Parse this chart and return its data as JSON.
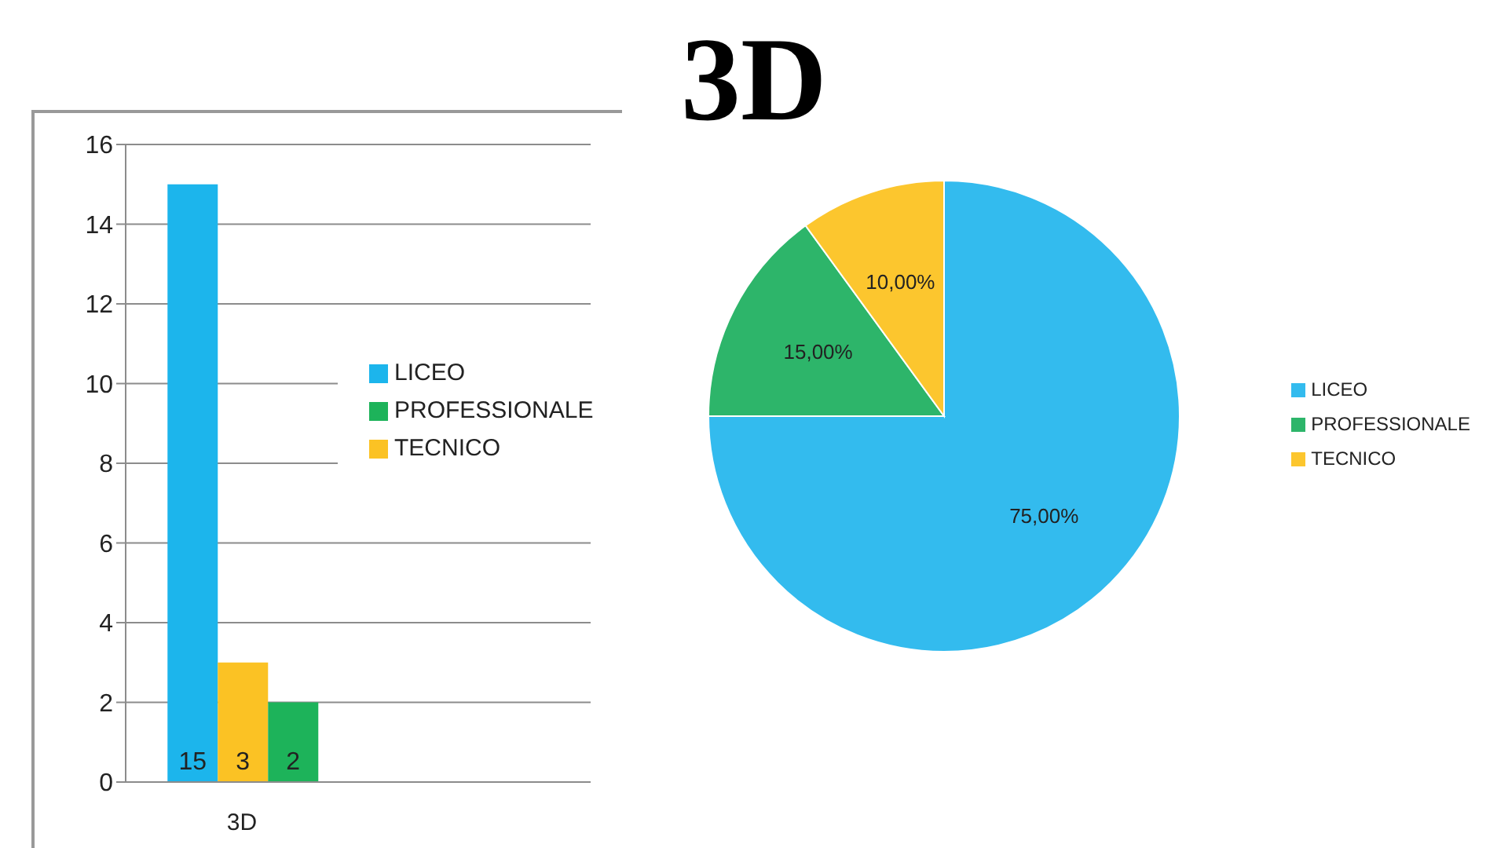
{
  "chart_data": [
    {
      "type": "bar",
      "categories": [
        "3D",
        null
      ],
      "series": [
        {
          "name": "LICEO",
          "color": "#1cb5ec",
          "values": [
            15,
            null
          ]
        },
        {
          "name": "TECNICO",
          "color": "#fbc224",
          "values": [
            3,
            null
          ]
        },
        {
          "name": "PROFESSIONALE",
          "color": "#1db35a",
          "values": [
            2,
            null
          ]
        }
      ],
      "ylim": [
        0,
        16
      ],
      "yticks": [
        0,
        2,
        4,
        6,
        8,
        10,
        12,
        14,
        16
      ],
      "grid": "y",
      "legend": "right",
      "data_labels": true
    },
    {
      "type": "pie",
      "title": "3D",
      "categories": [
        "LICEO",
        "PROFESSIONALE",
        "TECNICO"
      ],
      "values": [
        75,
        15,
        10
      ],
      "colors": [
        "#33bbee",
        "#2db56a",
        "#fcc62e"
      ],
      "value_labels": [
        "75,00%",
        "15,00%",
        "10,00%"
      ],
      "legend": "right"
    }
  ]
}
